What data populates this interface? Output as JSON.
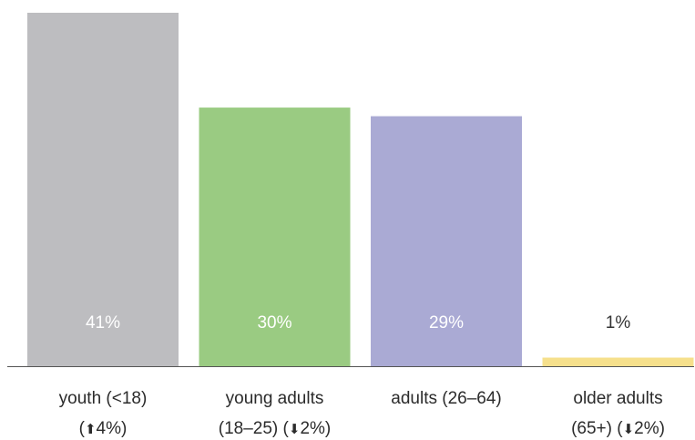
{
  "chart_data": {
    "type": "bar",
    "categories": [
      {
        "line1": "youth (<18)",
        "line2_pre": "(",
        "line2_post": "4%)",
        "change_direction": "up"
      },
      {
        "line1": "young adults",
        "line2_pre": "(18–25) (",
        "line2_post": "2%)",
        "change_direction": "down"
      },
      {
        "line1": "adults (26–64)",
        "line2_pre": "",
        "line2_post": "",
        "change_direction": ""
      },
      {
        "line1": "older adults",
        "line2_pre": "(65+) (",
        "line2_post": "2%)",
        "change_direction": "down"
      }
    ],
    "values": [
      41,
      30,
      29,
      1
    ],
    "value_labels": [
      "41%",
      "30%",
      "29%",
      "1%"
    ],
    "colors": [
      "#bdbdc0",
      "#9acb82",
      "#aaaad4",
      "#f6e08c"
    ],
    "value_label_colors": [
      "#ffffff",
      "#ffffff",
      "#ffffff",
      "#333333"
    ],
    "baseline_color": "#555555",
    "ylim": [
      0,
      41
    ],
    "grid": false,
    "legend": "none",
    "icons": {
      "up": "up-arrow-icon",
      "down": "down-arrow-icon"
    }
  }
}
